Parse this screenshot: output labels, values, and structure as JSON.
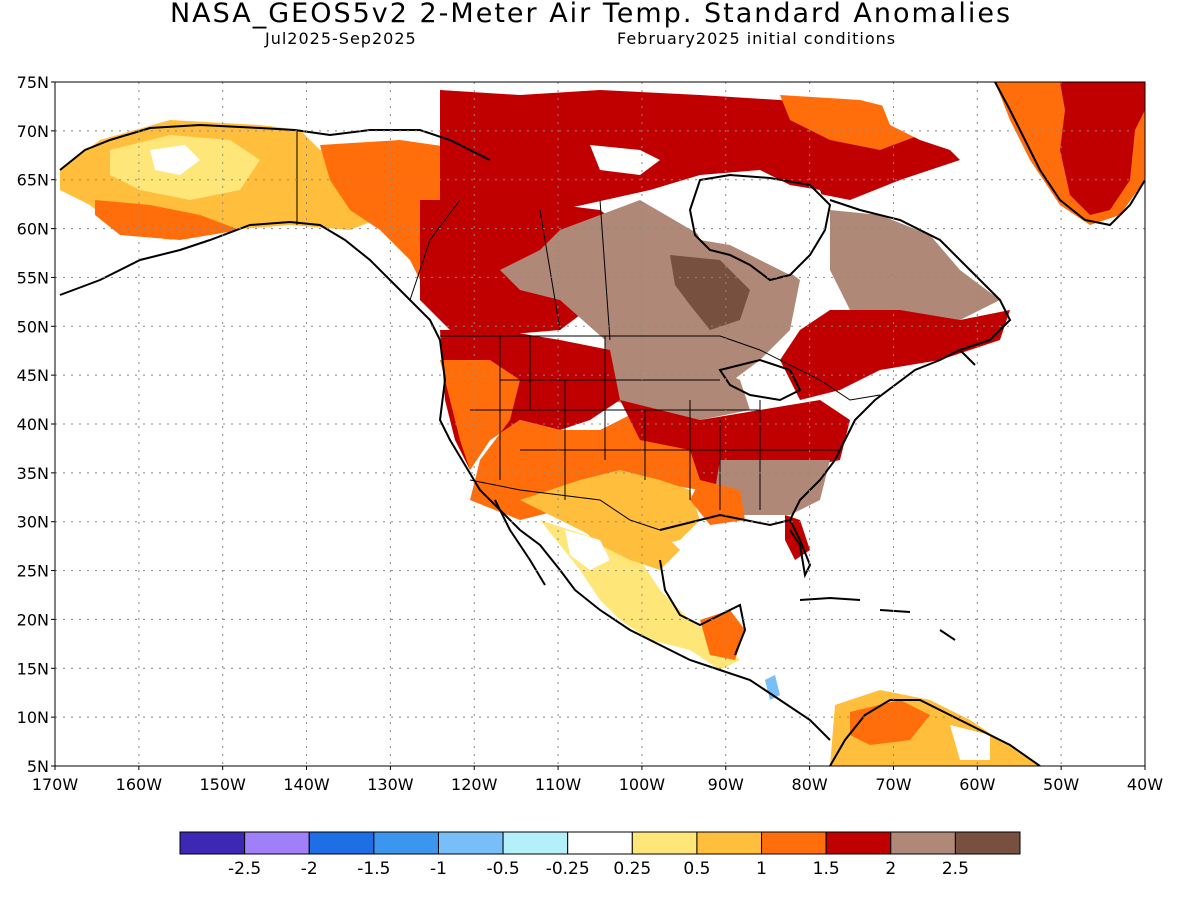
{
  "title": "NASA_GEOS5v2 2-Meter Air Temp. Standard Anomalies",
  "subtitle_left": "Jul2025-Sep2025",
  "subtitle_right": "February2025 initial conditions",
  "map": {
    "lat_labels": [
      "75N",
      "70N",
      "65N",
      "60N",
      "55N",
      "50N",
      "45N",
      "40N",
      "35N",
      "30N",
      "25N",
      "20N",
      "15N",
      "10N",
      "5N"
    ],
    "lon_labels": [
      "170W",
      "160W",
      "150W",
      "140W",
      "130W",
      "120W",
      "110W",
      "100W",
      "90W",
      "80W",
      "70W",
      "60W",
      "50W",
      "40W"
    ]
  },
  "colorbar": {
    "colors": [
      "#3c28b4",
      "#a080f8",
      "#1e6ee6",
      "#3c96f0",
      "#78bef8",
      "#b4f0fa",
      "#ffffff",
      "#ffe678",
      "#ffbe3c",
      "#ff6e0a",
      "#c00000",
      "#b08878",
      "#785040"
    ],
    "labels": [
      "-2.5",
      "-2",
      "-1.5",
      "-1",
      "-0.5",
      "-0.25",
      "0.25",
      "0.5",
      "1",
      "1.5",
      "2",
      "2.5"
    ]
  }
}
